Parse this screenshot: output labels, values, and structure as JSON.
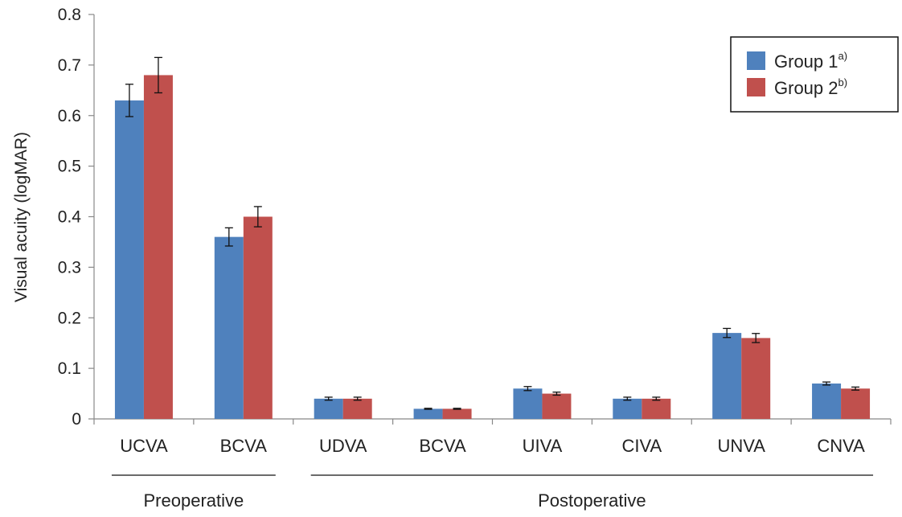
{
  "chart_data": {
    "type": "bar",
    "title": "",
    "xlabel": "",
    "ylabel": "Visual acuity (logMAR)",
    "ylim": [
      0,
      0.8
    ],
    "yticks": [
      "0",
      "0.1",
      "0.2",
      "0.3",
      "0.4",
      "0.5",
      "0.6",
      "0.7",
      "0.8"
    ],
    "grid": false,
    "legend_position": "top-right",
    "categories": [
      "UCVA",
      "BCVA",
      "UDVA",
      "BCVA",
      "UIVA",
      "CIVA",
      "UNVA",
      "CNVA"
    ],
    "groups": [
      {
        "label": "Preoperative",
        "start": 0,
        "end": 1
      },
      {
        "label": "Postoperative",
        "start": 2,
        "end": 7
      }
    ],
    "series": [
      {
        "name": "Group 1",
        "superscript": "a)",
        "color": "#4F81BD",
        "values": [
          0.63,
          0.36,
          0.04,
          0.02,
          0.06,
          0.04,
          0.17,
          0.07
        ],
        "errors": [
          0.032,
          0.018,
          0.003,
          0.001,
          0.004,
          0.003,
          0.009,
          0.003
        ]
      },
      {
        "name": "Group 2",
        "superscript": "b)",
        "color": "#C0504D",
        "values": [
          0.68,
          0.4,
          0.04,
          0.02,
          0.05,
          0.04,
          0.16,
          0.06
        ],
        "errors": [
          0.035,
          0.02,
          0.003,
          0.001,
          0.003,
          0.003,
          0.009,
          0.003
        ]
      }
    ]
  }
}
